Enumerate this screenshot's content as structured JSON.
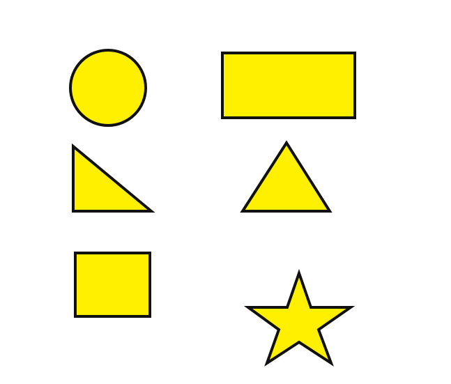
{
  "colors": {
    "fill": "#FFF000",
    "stroke": "#111111",
    "background": "#FFFFFF"
  },
  "shapes": [
    {
      "name": "circle",
      "kind": "circle"
    },
    {
      "name": "rectangle",
      "kind": "rectangle"
    },
    {
      "name": "right-triangle",
      "kind": "right-triangle"
    },
    {
      "name": "triangle",
      "kind": "triangle"
    },
    {
      "name": "square",
      "kind": "square"
    },
    {
      "name": "star",
      "kind": "star"
    }
  ]
}
